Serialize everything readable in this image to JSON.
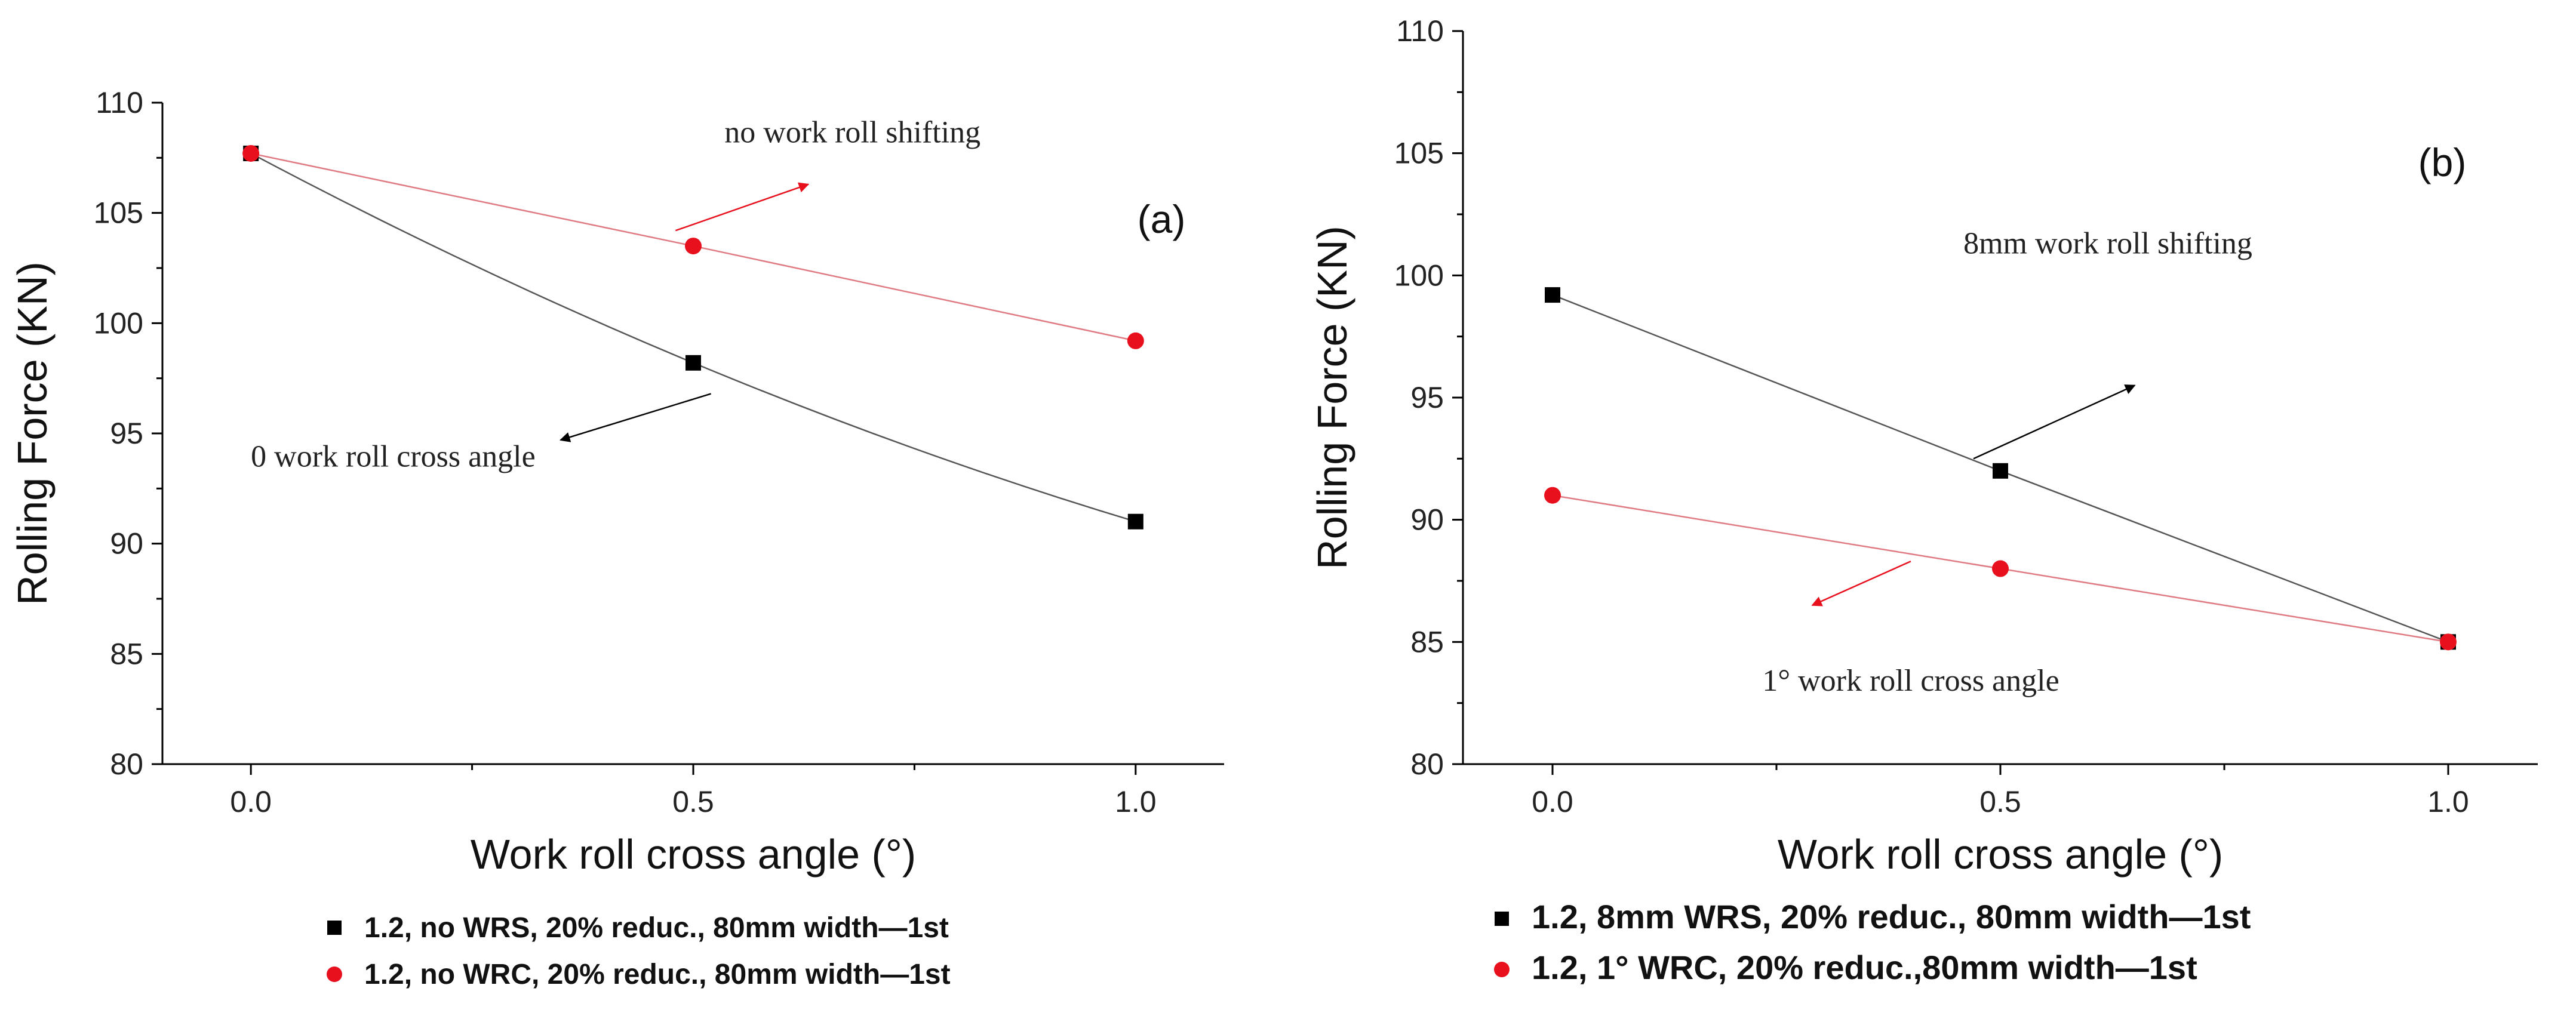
{
  "chart_data": [
    {
      "type": "scatter",
      "panel_label": "(a)",
      "xlabel": "Work roll cross angle (°)",
      "ylabel": "Rolling Force (KN)",
      "xlim": [
        -0.1,
        1.1
      ],
      "ylim": [
        80,
        110
      ],
      "x_ticks": [
        0.0,
        0.5,
        1.0
      ],
      "x_tick_labels": [
        "0.0",
        "0.5",
        "1.0"
      ],
      "y_ticks": [
        80,
        85,
        90,
        95,
        100,
        105,
        110
      ],
      "y_tick_labels": [
        "80",
        "85",
        "90",
        "95",
        "100",
        "105",
        "110"
      ],
      "series": [
        {
          "name": "1.2, no WRS, 20% reduc., 80mm width—1st",
          "color": "#000000",
          "line_color": "#555555",
          "marker": "square",
          "curve": "smooth",
          "x": [
            0.0,
            0.5,
            1.0
          ],
          "values": [
            107.7,
            98.2,
            91.0
          ]
        },
        {
          "name": "1.2, no WRC, 20% reduc., 80mm width—1st",
          "color": "#e8101c",
          "line_color": "#e07a83",
          "marker": "circle",
          "curve": "linear",
          "x": [
            0.0,
            0.5,
            1.0
          ],
          "values": [
            107.7,
            103.5,
            99.2
          ]
        }
      ],
      "annotations": [
        {
          "text": "no work roll shifting",
          "x": 0.68,
          "y": 108.2,
          "arrow_from": [
            0.48,
            104.2
          ],
          "arrow_to": [
            0.63,
            106.3
          ],
          "color": "#e8101c"
        },
        {
          "text": "0 work roll cross angle",
          "x": 0.0,
          "y": 93.5,
          "arrow_from": [
            0.52,
            96.8
          ],
          "arrow_to": [
            0.35,
            94.7
          ],
          "color": "#000000"
        }
      ]
    },
    {
      "type": "scatter",
      "panel_label": "(b)",
      "xlabel": "Work roll cross angle (°)",
      "ylabel": "Rolling Force (KN)",
      "xlim": [
        -0.1,
        1.1
      ],
      "ylim": [
        80,
        110
      ],
      "x_ticks": [
        0.0,
        0.5,
        1.0
      ],
      "x_tick_labels": [
        "0.0",
        "0.5",
        "1.0"
      ],
      "y_ticks": [
        80,
        85,
        90,
        95,
        100,
        105,
        110
      ],
      "y_tick_labels": [
        "80",
        "85",
        "90",
        "95",
        "100",
        "105",
        "110"
      ],
      "series": [
        {
          "name": "1.2, 8mm WRS, 20% reduc., 80mm width—1st",
          "color": "#000000",
          "line_color": "#555555",
          "marker": "square",
          "curve": "linear",
          "x": [
            0.0,
            0.5,
            1.0
          ],
          "values": [
            99.2,
            92.0,
            85.0
          ]
        },
        {
          "name": "1.2, 1° WRC, 20% reduc.,80mm width—1st",
          "color": "#e8101c",
          "line_color": "#e07a83",
          "marker": "circle",
          "curve": "linear",
          "x": [
            0.0,
            0.5,
            1.0
          ],
          "values": [
            91.0,
            88.0,
            85.0
          ]
        }
      ],
      "annotations": [
        {
          "text": "8mm work roll shifting",
          "x": 0.62,
          "y": 100.9,
          "arrow_from": [
            0.47,
            92.5
          ],
          "arrow_to": [
            0.65,
            95.5
          ],
          "color": "#000000"
        },
        {
          "text": "1° work roll cross angle",
          "x": 0.4,
          "y": 83.0,
          "arrow_from": [
            0.4,
            88.3
          ],
          "arrow_to": [
            0.29,
            86.5
          ],
          "color": "#e8101c"
        }
      ]
    }
  ]
}
